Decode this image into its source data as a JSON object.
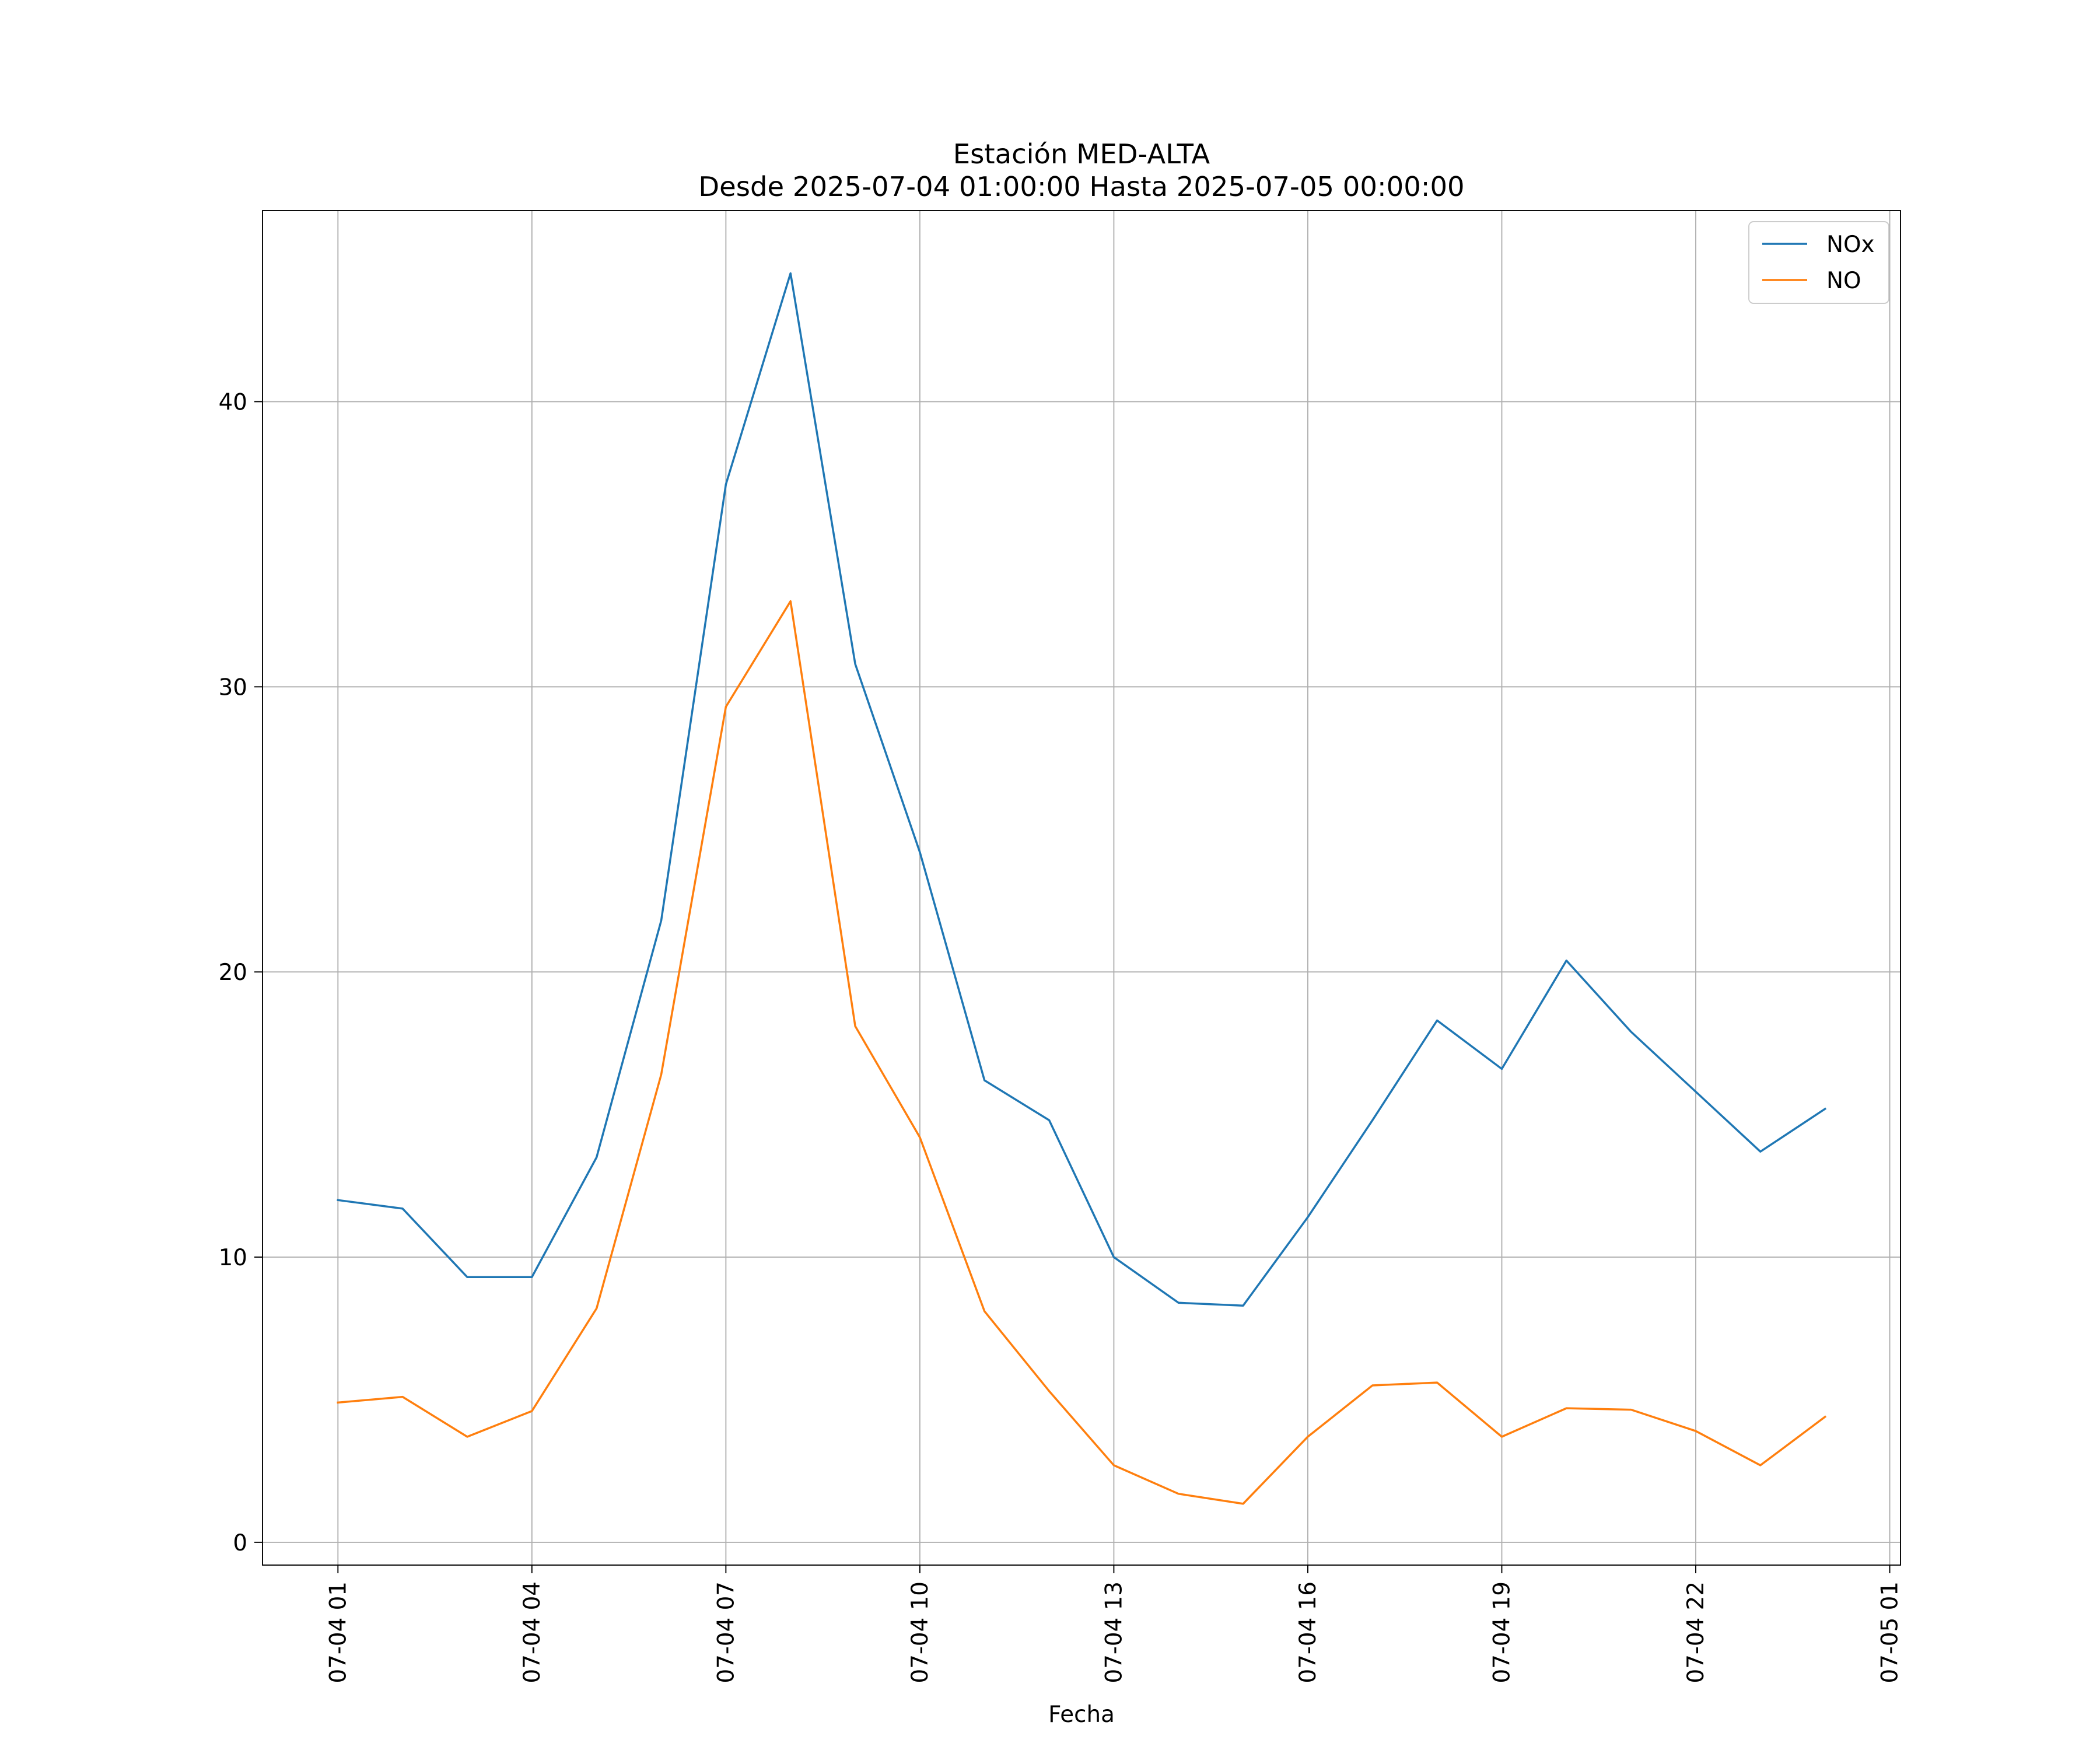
{
  "chart_data": {
    "type": "line",
    "title_line1": "Estación MED-ALTA",
    "title_line2": "Desde 2025-07-04 01:00:00 Hasta 2025-07-05 00:00:00",
    "xlabel": "Fecha",
    "ylabel": "",
    "grid": true,
    "legend_position": "top-right",
    "x": [
      "2025-07-04 01:00",
      "2025-07-04 02:00",
      "2025-07-04 03:00",
      "2025-07-04 04:00",
      "2025-07-04 05:00",
      "2025-07-04 06:00",
      "2025-07-04 07:00",
      "2025-07-04 08:00",
      "2025-07-04 09:00",
      "2025-07-04 10:00",
      "2025-07-04 11:00",
      "2025-07-04 12:00",
      "2025-07-04 13:00",
      "2025-07-04 14:00",
      "2025-07-04 15:00",
      "2025-07-04 16:00",
      "2025-07-04 17:00",
      "2025-07-04 18:00",
      "2025-07-04 19:00",
      "2025-07-04 20:00",
      "2025-07-04 21:00",
      "2025-07-04 22:00",
      "2025-07-04 23:00",
      "2025-07-05 00:00"
    ],
    "xlim": [
      "2025-07-03 23:50",
      "2025-07-05 01:10"
    ],
    "x_ticks": [
      {
        "value": "2025-07-04 01:00",
        "label": "07-04 01"
      },
      {
        "value": "2025-07-04 04:00",
        "label": "07-04 04"
      },
      {
        "value": "2025-07-04 07:00",
        "label": "07-04 07"
      },
      {
        "value": "2025-07-04 10:00",
        "label": "07-04 10"
      },
      {
        "value": "2025-07-04 13:00",
        "label": "07-04 13"
      },
      {
        "value": "2025-07-04 16:00",
        "label": "07-04 16"
      },
      {
        "value": "2025-07-04 19:00",
        "label": "07-04 19"
      },
      {
        "value": "2025-07-04 22:00",
        "label": "07-04 22"
      },
      {
        "value": "2025-07-05 01:00",
        "label": "07-05 01"
      }
    ],
    "ylim": [
      -0.8,
      46.7
    ],
    "y_ticks": [
      0,
      10,
      20,
      30,
      40
    ],
    "series": [
      {
        "name": "NOx",
        "color": "#1f77b4",
        "values": [
          12.0,
          11.7,
          9.3,
          9.3,
          13.5,
          21.8,
          37.1,
          44.5,
          30.8,
          24.2,
          16.2,
          14.8,
          10.0,
          8.4,
          8.3,
          11.4,
          14.8,
          18.3,
          16.6,
          20.4,
          17.9,
          15.8,
          13.7,
          15.2
        ]
      },
      {
        "name": "NO",
        "color": "#ff7f0e",
        "values": [
          4.9,
          5.1,
          3.7,
          4.6,
          8.2,
          16.4,
          29.3,
          33.0,
          18.1,
          14.2,
          8.1,
          5.3,
          2.7,
          1.7,
          1.35,
          3.7,
          5.5,
          5.6,
          3.7,
          4.7,
          4.65,
          3.9,
          2.7,
          4.4
        ]
      }
    ]
  }
}
